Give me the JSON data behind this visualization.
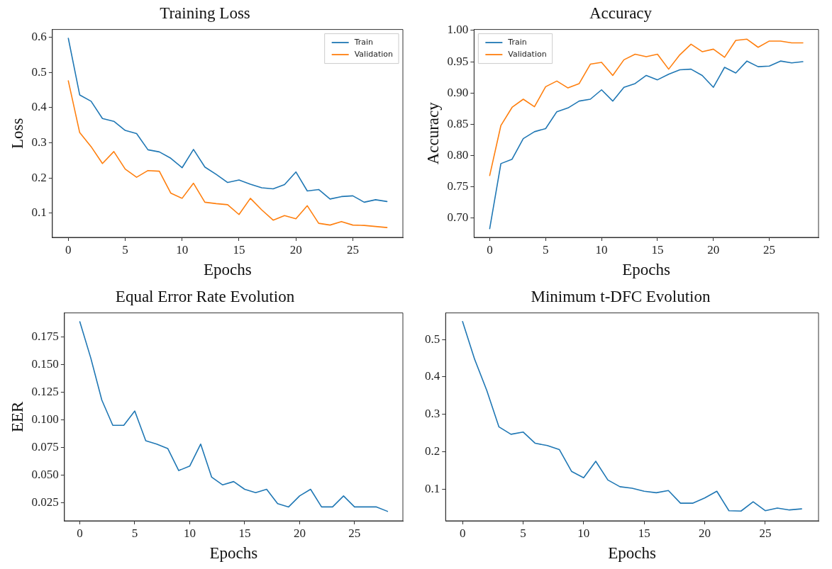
{
  "chart_data": [
    {
      "type": "line",
      "title": "Training Loss",
      "xlabel": "Epochs",
      "ylabel": "Loss",
      "legend": "top right",
      "grid": false,
      "x": [
        0,
        1,
        2,
        3,
        4,
        5,
        6,
        7,
        8,
        9,
        10,
        11,
        12,
        13,
        14,
        15,
        16,
        17,
        18,
        19,
        20,
        21,
        22,
        23,
        24,
        25,
        26,
        27,
        28
      ],
      "xlim": [
        -1.4,
        29.4
      ],
      "xticks": [
        0,
        5,
        10,
        15,
        20,
        25
      ],
      "ylim": [
        0.031,
        0.622
      ],
      "yticks": [
        0.1,
        0.2,
        0.3,
        0.4,
        0.5,
        0.6
      ],
      "series": [
        {
          "name": "Train",
          "color": "#1f77b4",
          "values": [
            0.597,
            0.436,
            0.418,
            0.369,
            0.361,
            0.335,
            0.326,
            0.28,
            0.274,
            0.256,
            0.229,
            0.281,
            0.231,
            0.21,
            0.187,
            0.194,
            0.182,
            0.172,
            0.169,
            0.181,
            0.217,
            0.163,
            0.167,
            0.14,
            0.147,
            0.149,
            0.131,
            0.138,
            0.133
          ]
        },
        {
          "name": "Validation",
          "color": "#ff7f0e",
          "values": [
            0.476,
            0.329,
            0.289,
            0.241,
            0.275,
            0.225,
            0.202,
            0.221,
            0.219,
            0.157,
            0.142,
            0.185,
            0.131,
            0.127,
            0.124,
            0.096,
            0.142,
            0.109,
            0.08,
            0.093,
            0.084,
            0.121,
            0.071,
            0.066,
            0.076,
            0.066,
            0.065,
            0.062,
            0.059
          ]
        }
      ]
    },
    {
      "type": "line",
      "title": "Accuracy",
      "xlabel": "Epochs",
      "ylabel": "Accuracy",
      "legend": "top left",
      "grid": false,
      "x": [
        0,
        1,
        2,
        3,
        4,
        5,
        6,
        7,
        8,
        9,
        10,
        11,
        12,
        13,
        14,
        15,
        16,
        17,
        18,
        19,
        20,
        21,
        22,
        23,
        24,
        25,
        26,
        27,
        28
      ],
      "xlim": [
        -1.4,
        29.4
      ],
      "xticks": [
        0,
        5,
        10,
        15,
        20,
        25
      ],
      "ylim": [
        0.669,
        1.0015
      ],
      "yticks": [
        {
          "value": 0.7,
          "label": "0.70"
        },
        {
          "value": 0.75,
          "label": "0.75"
        },
        {
          "value": 0.8,
          "label": "0.80"
        },
        {
          "value": 0.85,
          "label": "0.85"
        },
        {
          "value": 0.9,
          "label": "0.90"
        },
        {
          "value": 0.95,
          "label": "0.95"
        },
        {
          "value": 1.0,
          "label": "1.00"
        }
      ],
      "series": [
        {
          "name": "Train",
          "color": "#1f77b4",
          "values": [
            0.683,
            0.787,
            0.794,
            0.827,
            0.838,
            0.843,
            0.87,
            0.876,
            0.887,
            0.89,
            0.905,
            0.887,
            0.909,
            0.915,
            0.928,
            0.921,
            0.93,
            0.937,
            0.938,
            0.928,
            0.909,
            0.941,
            0.932,
            0.951,
            0.942,
            0.943,
            0.951,
            0.948,
            0.95
          ]
        },
        {
          "name": "Validation",
          "color": "#ff7f0e",
          "values": [
            0.768,
            0.848,
            0.877,
            0.89,
            0.878,
            0.91,
            0.919,
            0.908,
            0.915,
            0.946,
            0.949,
            0.928,
            0.953,
            0.962,
            0.958,
            0.962,
            0.938,
            0.961,
            0.978,
            0.966,
            0.97,
            0.957,
            0.984,
            0.986,
            0.973,
            0.983,
            0.983,
            0.98,
            0.98
          ]
        }
      ]
    },
    {
      "type": "line",
      "title": "Equal Error Rate Evolution",
      "xlabel": "Epochs",
      "ylabel": "EER",
      "grid": false,
      "x": [
        0,
        1,
        2,
        3,
        4,
        5,
        6,
        7,
        8,
        9,
        10,
        11,
        12,
        13,
        14,
        15,
        16,
        17,
        18,
        19,
        20,
        21,
        22,
        23,
        24,
        25,
        26,
        27,
        28
      ],
      "xlim": [
        -1.4,
        29.4
      ],
      "xticks": [
        0,
        5,
        10,
        15,
        20,
        25
      ],
      "ylim": [
        0.0084,
        0.197
      ],
      "yticks": [
        {
          "value": 0.025,
          "label": "0.025"
        },
        {
          "value": 0.05,
          "label": "0.050"
        },
        {
          "value": 0.075,
          "label": "0.075"
        },
        {
          "value": 0.1,
          "label": "0.100"
        },
        {
          "value": 0.125,
          "label": "0.125"
        },
        {
          "value": 0.15,
          "label": "0.150"
        },
        {
          "value": 0.175,
          "label": "0.175"
        }
      ],
      "series": [
        {
          "color": "#1f77b4",
          "values": [
            0.189,
            0.156,
            0.118,
            0.095,
            0.095,
            0.108,
            0.081,
            0.078,
            0.074,
            0.054,
            0.058,
            0.078,
            0.048,
            0.041,
            0.044,
            0.037,
            0.034,
            0.037,
            0.024,
            0.021,
            0.031,
            0.037,
            0.021,
            0.021,
            0.031,
            0.021,
            0.021,
            0.021,
            0.017
          ]
        }
      ]
    },
    {
      "type": "line",
      "title": "Minimum t-DFC Evolution",
      "xlabel": "Epochs",
      "grid": false,
      "x": [
        0,
        1,
        2,
        3,
        4,
        5,
        6,
        7,
        8,
        9,
        10,
        11,
        12,
        13,
        14,
        15,
        16,
        17,
        18,
        19,
        20,
        21,
        22,
        23,
        24,
        25,
        26,
        27,
        28
      ],
      "xlim": [
        -1.4,
        29.4
      ],
      "xticks": [
        0,
        5,
        10,
        15,
        20,
        25
      ],
      "ylim": [
        0.016,
        0.571
      ],
      "yticks": [
        0.1,
        0.2,
        0.3,
        0.4,
        0.5
      ],
      "series": [
        {
          "color": "#1f77b4",
          "values": [
            0.548,
            0.447,
            0.364,
            0.267,
            0.247,
            0.253,
            0.223,
            0.217,
            0.206,
            0.148,
            0.131,
            0.175,
            0.125,
            0.107,
            0.103,
            0.095,
            0.091,
            0.097,
            0.063,
            0.063,
            0.077,
            0.095,
            0.043,
            0.042,
            0.067,
            0.043,
            0.05,
            0.045,
            0.048
          ]
        }
      ]
    }
  ]
}
